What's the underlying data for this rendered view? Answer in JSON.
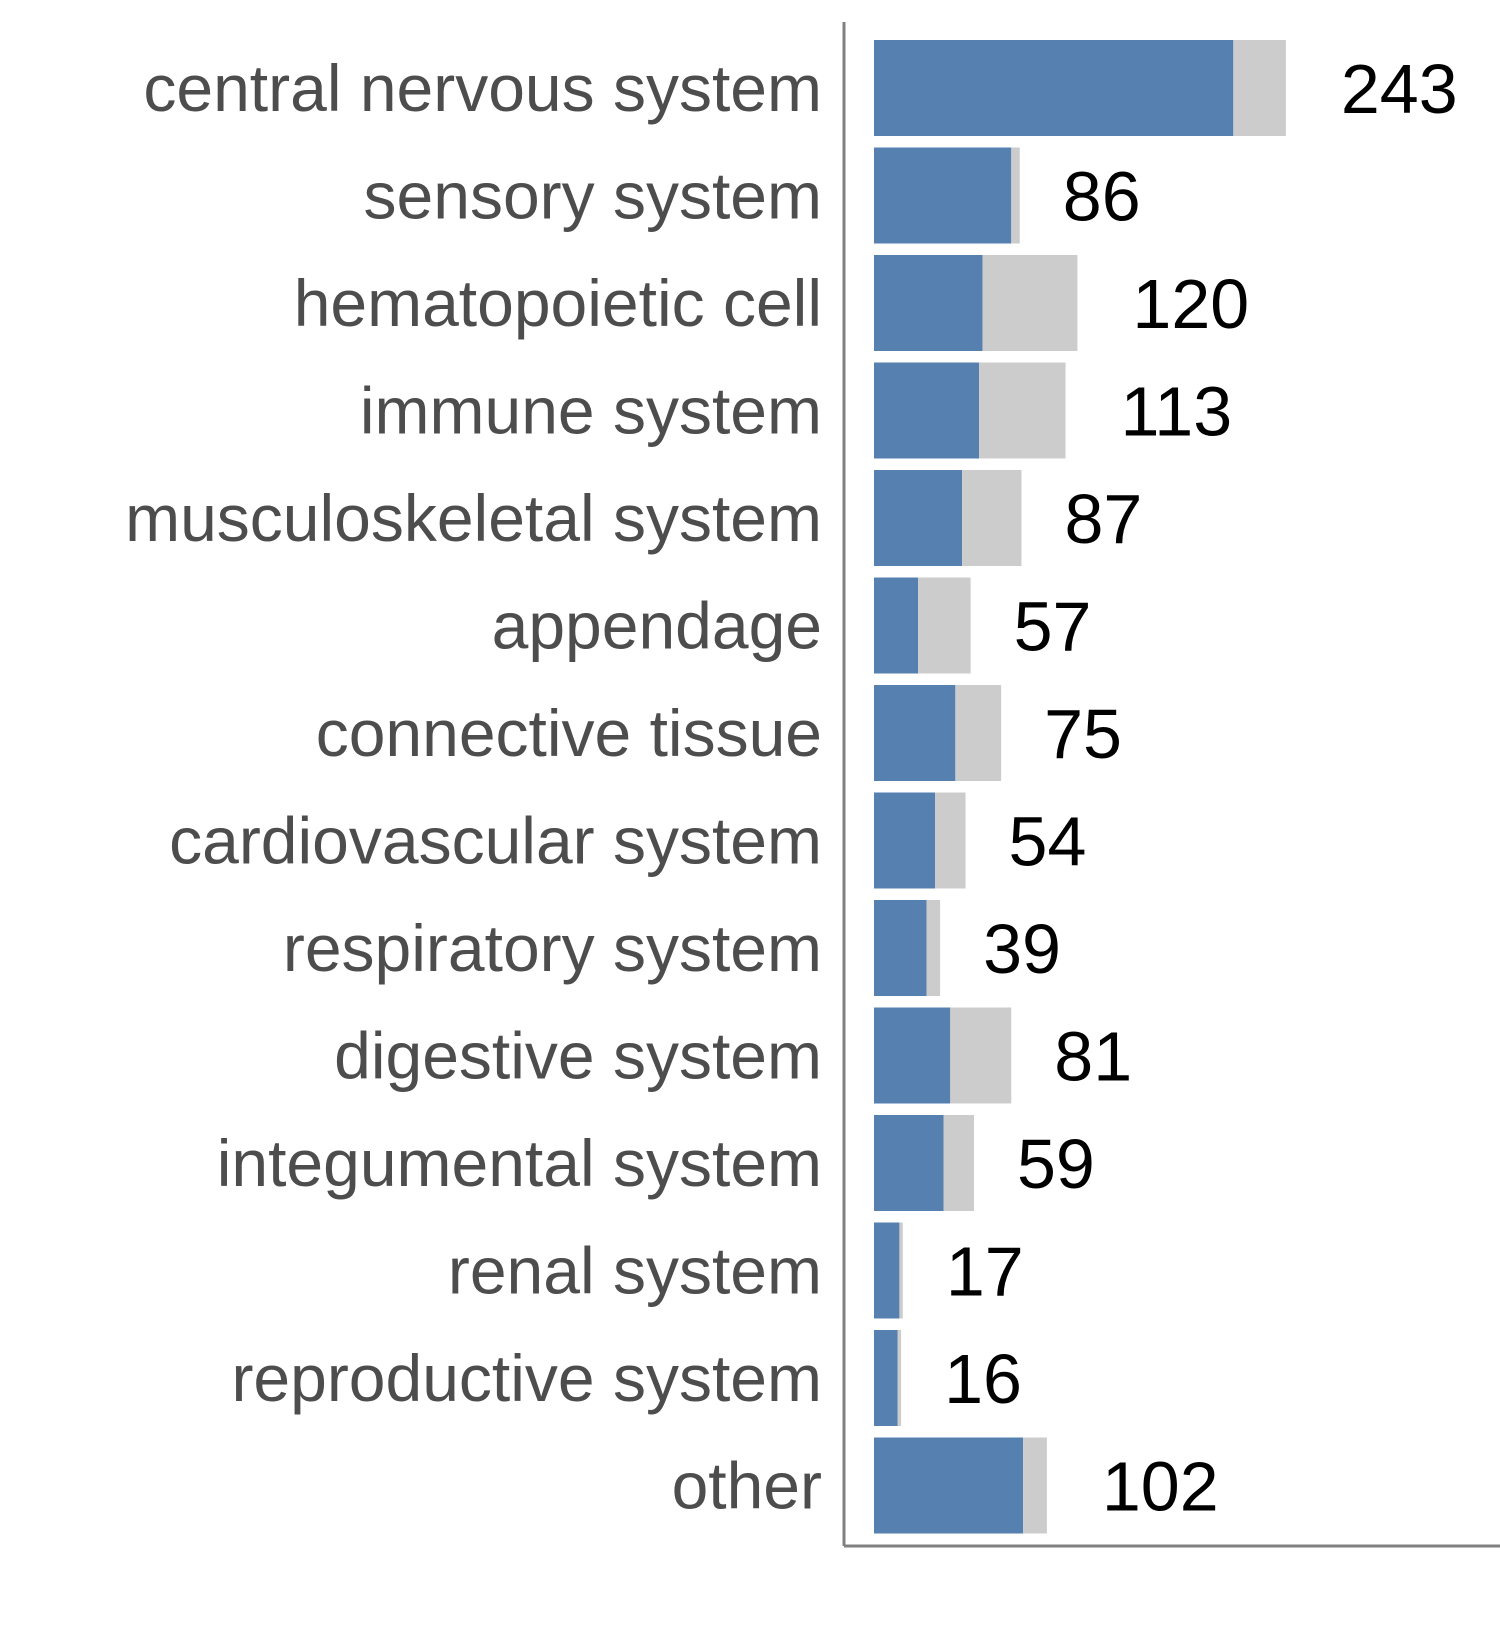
{
  "chart_data": {
    "type": "bar",
    "orientation": "horizontal",
    "stacked": true,
    "title": "",
    "xlabel": "",
    "ylabel": "",
    "categories": [
      "central nervous system",
      "sensory system",
      "hematopoietic cell",
      "immune system",
      "musculoskeletal system",
      "appendage",
      "connective tissue",
      "cardiovascular system",
      "respiratory system",
      "digestive system",
      "integumental system",
      "renal system",
      "reproductive system",
      "other"
    ],
    "series": [
      {
        "values": [
          212,
          81,
          64,
          62,
          52,
          26,
          48,
          36,
          31,
          45,
          41,
          15,
          14,
          88
        ]
      },
      {
        "values": [
          31,
          5,
          56,
          51,
          35,
          31,
          27,
          18,
          8,
          36,
          18,
          2,
          2,
          14
        ]
      }
    ],
    "totals": [
      243,
      86,
      120,
      113,
      87,
      57,
      75,
      54,
      39,
      81,
      59,
      17,
      16,
      102
    ],
    "xlim": [
      0,
      243
    ],
    "grid": false,
    "legend": "none",
    "colors": {
      "primary": "#5580b0",
      "secondary": "#cccccc",
      "axis": "#808080"
    }
  }
}
